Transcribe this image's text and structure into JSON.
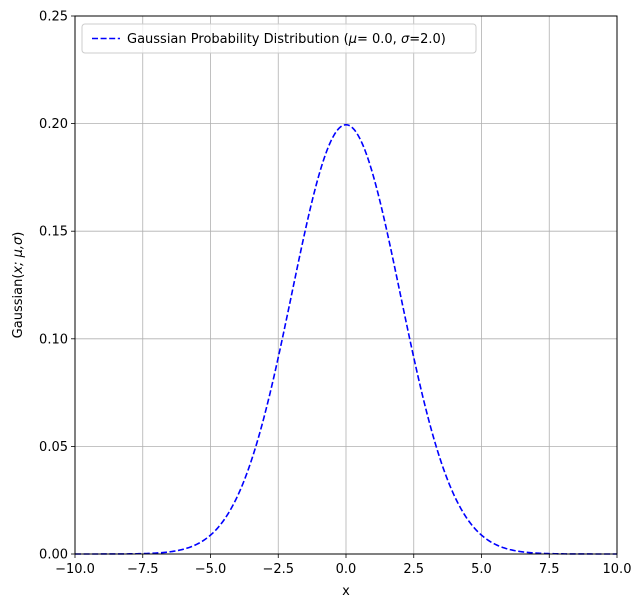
{
  "chart_data": {
    "type": "line",
    "title": "",
    "xlabel": "x",
    "ylabel": "Gaussian(x; μ,σ)",
    "xlim": [
      -10.0,
      10.0
    ],
    "ylim": [
      0.0,
      0.25
    ],
    "x_ticks": [
      -10.0,
      -7.5,
      -5.0,
      -2.5,
      0.0,
      2.5,
      5.0,
      7.5,
      10.0
    ],
    "x_tick_labels": [
      "−10.0",
      "−7.5",
      "−5.0",
      "−2.5",
      "0.0",
      "2.5",
      "5.0",
      "7.5",
      "10.0"
    ],
    "y_ticks": [
      0.0,
      0.05,
      0.1,
      0.15,
      0.2,
      0.25
    ],
    "y_tick_labels": [
      "0.00",
      "0.05",
      "0.10",
      "0.15",
      "0.20",
      "0.25"
    ],
    "grid": true,
    "legend_position": "top-left",
    "series": [
      {
        "name": "Gaussian Probability Distribution (μ=  0.0, σ=2.0)",
        "color": "#0000ff",
        "line_style": "dashed",
        "mu": 0.0,
        "sigma": 2.0,
        "x": [
          -10.0,
          -9.0,
          -8.0,
          -7.0,
          -6.0,
          -5.5,
          -5.0,
          -4.5,
          -4.0,
          -3.5,
          -3.0,
          -2.5,
          -2.0,
          -1.5,
          -1.0,
          -0.5,
          0.0,
          0.5,
          1.0,
          1.5,
          2.0,
          2.5,
          3.0,
          3.5,
          4.0,
          4.5,
          5.0,
          5.5,
          6.0,
          7.0,
          8.0,
          9.0,
          10.0
        ],
        "values": [
          0.0,
          0.0,
          0.0001,
          0.0004,
          0.0022,
          0.0045,
          0.0088,
          0.0158,
          0.027,
          0.0431,
          0.0648,
          0.0913,
          0.121,
          0.1506,
          0.176,
          0.1933,
          0.1995,
          0.1933,
          0.176,
          0.1506,
          0.121,
          0.0913,
          0.0648,
          0.0431,
          0.027,
          0.0158,
          0.0088,
          0.0045,
          0.0022,
          0.0004,
          0.0001,
          0.0,
          0.0
        ]
      }
    ]
  },
  "colors": {
    "grid": "#b0b0b0",
    "axes": "#000000",
    "series": "#0000ff",
    "legend_border": "#cccccc"
  }
}
